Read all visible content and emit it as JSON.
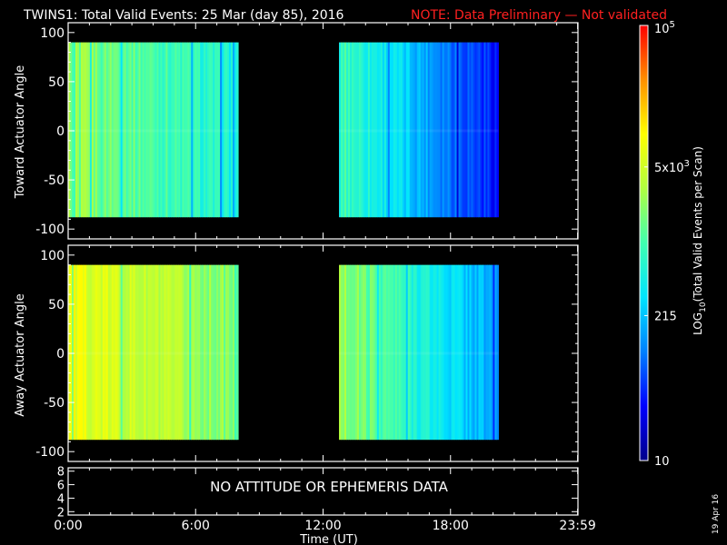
{
  "title": {
    "main": "TWINS1: Total Valid Events: 25 Mar (day  85), 2016",
    "note": "NOTE: Data Preliminary — Not validated",
    "note_color": "#ff2020"
  },
  "panels": {
    "toward_ylabel": "Toward Actuator Angle",
    "away_ylabel": "Away Actuator Angle",
    "attitude_message": "NO ATTITUDE OR EPHEMERIS DATA"
  },
  "xaxis": {
    "label": "Time (UT)",
    "ticks": [
      "0:00",
      "6:00",
      "12:00",
      "18:00",
      "23:59"
    ],
    "tick_hours": [
      0,
      6,
      12,
      18,
      23.983
    ]
  },
  "colorbar": {
    "label": "LOG10(Total Valid Events per Scan)",
    "label_parts": [
      "LOG",
      "10",
      "(Total Valid Events per Scan)"
    ],
    "tick_labels": [
      {
        "base": "10",
        "sup": "5",
        "value": 100000
      },
      {
        "base": "5x10",
        "sup": "3",
        "value": 5000
      },
      {
        "base": "215",
        "sup": "",
        "value": 215
      },
      {
        "base": "10",
        "sup": "",
        "value": 10
      }
    ],
    "stops": [
      "#00008b",
      "#0000ff",
      "#0080ff",
      "#00e5ff",
      "#40ffb0",
      "#b0ff40",
      "#ffff00",
      "#ff9000",
      "#ff0000"
    ]
  },
  "footer": {
    "date": "19 Apr 16"
  },
  "chart_data": [
    {
      "type": "heatmap",
      "name": "Toward Actuator Angle",
      "ylabel": "Toward Actuator Angle",
      "ylim": [
        -110,
        110
      ],
      "yticks": [
        100,
        50,
        0,
        -50,
        -100
      ],
      "angle_range": [
        -88,
        90
      ],
      "xlim_hours": [
        0,
        24
      ],
      "blocks": [
        {
          "start_hour": 0.0,
          "end_hour": 8.0,
          "base_level": 0.6,
          "end_level": 0.42
        },
        {
          "start_hour": 12.75,
          "end_hour": 20.25,
          "base_level": 0.5,
          "end_level": 0.14
        }
      ]
    },
    {
      "type": "heatmap",
      "name": "Away Actuator Angle",
      "ylabel": "Away Actuator Angle",
      "ylim": [
        -110,
        110
      ],
      "yticks": [
        100,
        50,
        0,
        -50,
        -100
      ],
      "angle_range": [
        -88,
        90
      ],
      "xlim_hours": [
        0,
        24
      ],
      "blocks": [
        {
          "start_hour": 0.0,
          "end_hour": 8.0,
          "base_level": 0.72,
          "end_level": 0.56
        },
        {
          "start_hour": 12.75,
          "end_hour": 20.25,
          "base_level": 0.6,
          "end_level": 0.28
        }
      ]
    },
    {
      "type": "line",
      "name": "attitude",
      "ylim": [
        1.5,
        8.5
      ],
      "yticks": [
        8,
        6,
        4,
        2
      ],
      "series": []
    }
  ]
}
